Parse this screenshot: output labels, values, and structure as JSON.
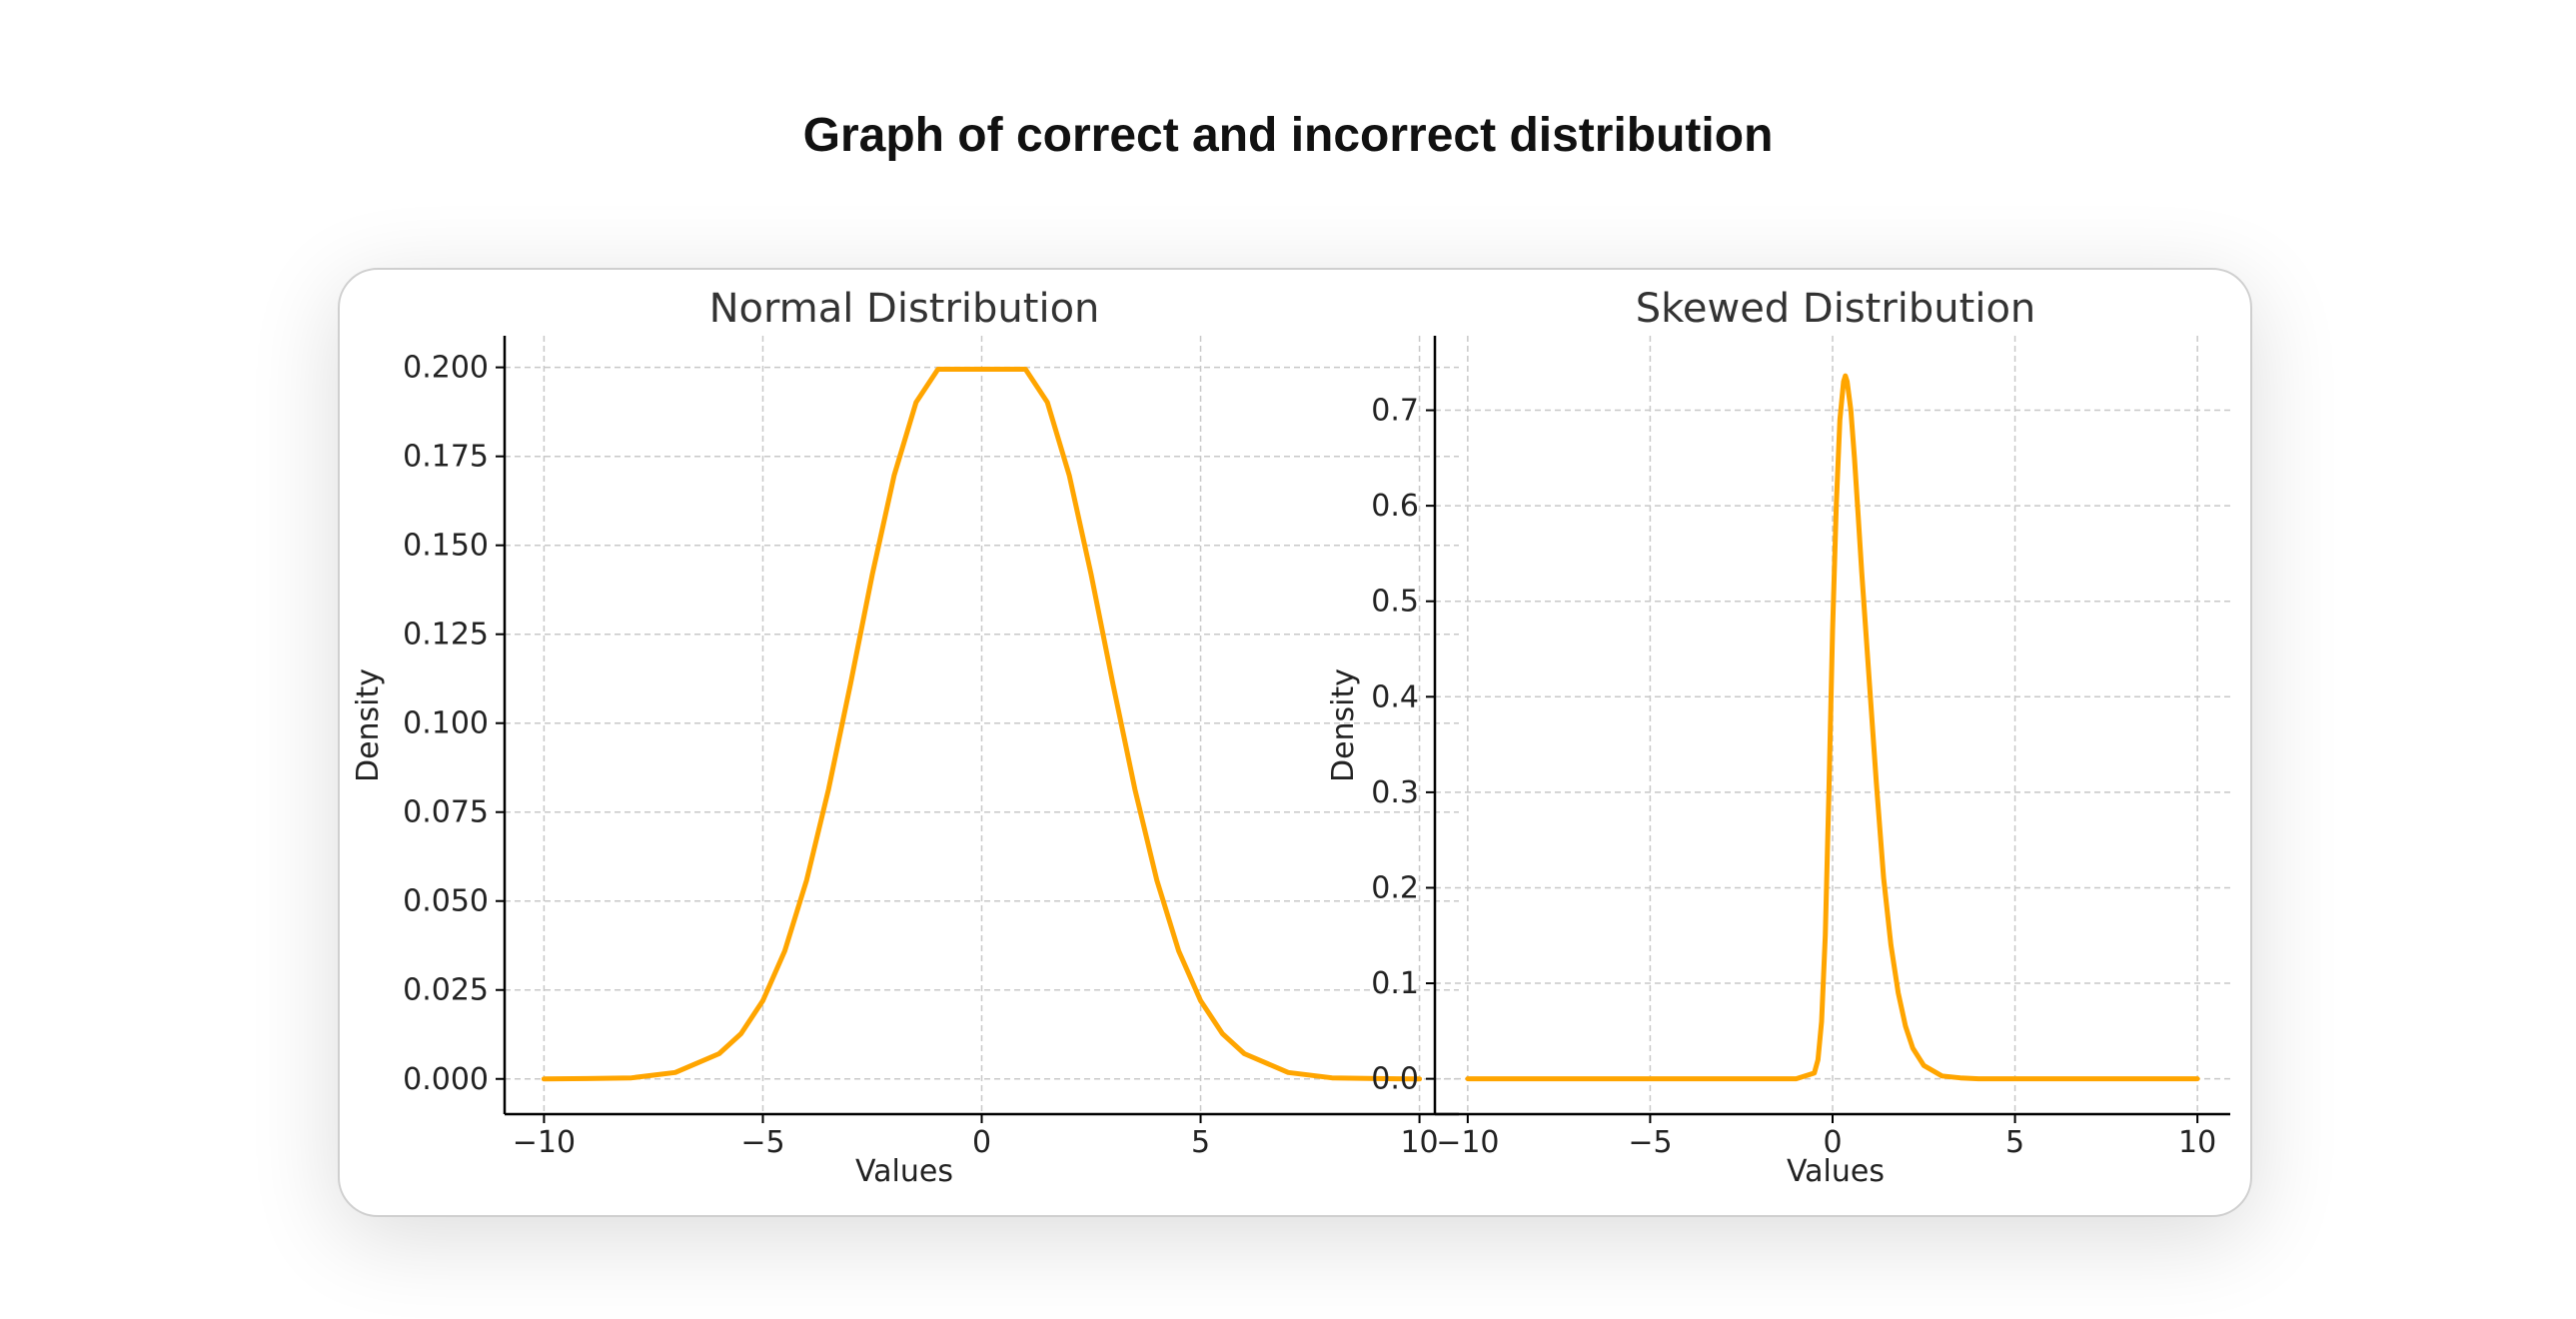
{
  "page": {
    "title": "Graph of correct and incorrect distribution"
  },
  "colors": {
    "curve": "#FFA500",
    "axis": "#000000",
    "grid": "#c8c8c8",
    "title_text": "#333333"
  },
  "chart_data": [
    {
      "type": "line",
      "title": "Normal Distribution",
      "xlabel": "Values",
      "ylabel": "Density",
      "xlim": [
        -10.9,
        10.9
      ],
      "ylim": [
        -0.0099,
        0.2089
      ],
      "xticks": [
        -10,
        -5,
        0,
        5,
        10
      ],
      "xtick_labels": [
        "−10",
        "−5",
        "0",
        "5",
        "10"
      ],
      "yticks": [
        0,
        0.025,
        0.05,
        0.075,
        0.1,
        0.125,
        0.15,
        0.175,
        0.2
      ],
      "ytick_labels": [
        "0.000",
        "0.025",
        "0.050",
        "0.075",
        "0.100",
        "0.125",
        "0.150",
        "0.175",
        "0.200"
      ],
      "grid": true,
      "series": [
        {
          "x": [
            -10,
            -9,
            -8,
            -7,
            -6,
            -5.5,
            -5,
            -4.5,
            -4,
            -3.5,
            -3,
            -2.5,
            -2,
            -1.5,
            -1,
            -0.5,
            0,
            0.5,
            1,
            1.5,
            2,
            2.5,
            3,
            3.5,
            4,
            4.5,
            5,
            5.5,
            6,
            7,
            8,
            9,
            10
          ],
          "y": [
            0.0,
            0.0001,
            0.0003,
            0.0018,
            0.0071,
            0.0127,
            0.022,
            0.036,
            0.0559,
            0.0814,
            0.1109,
            0.1418,
            0.1697,
            0.1902,
            0.1995,
            0.1995,
            0.1995,
            0.1995,
            0.1995,
            0.1902,
            0.1697,
            0.1418,
            0.1109,
            0.0814,
            0.0559,
            0.036,
            0.022,
            0.0127,
            0.0071,
            0.0018,
            0.0003,
            0.0001,
            0.0
          ]
        }
      ]
    },
    {
      "type": "line",
      "title": "Skewed Distribution",
      "xlabel": "Values",
      "ylabel": "Density",
      "xlim": [
        -10.9,
        10.9
      ],
      "ylim": [
        -0.037,
        0.778
      ],
      "xticks": [
        -10,
        -5,
        0,
        5,
        10
      ],
      "xtick_labels": [
        "−10",
        "−5",
        "0",
        "5",
        "10"
      ],
      "yticks": [
        0,
        0.1,
        0.2,
        0.3,
        0.4,
        0.5,
        0.6,
        0.7
      ],
      "ytick_labels": [
        "0.0",
        "0.1",
        "0.2",
        "0.3",
        "0.4",
        "0.5",
        "0.6",
        "0.7"
      ],
      "grid": true,
      "series": [
        {
          "x": [
            -10,
            -1,
            -0.5,
            -0.4,
            -0.3,
            -0.2,
            -0.1,
            0,
            0.1,
            0.2,
            0.3,
            0.35,
            0.4,
            0.5,
            0.6,
            0.7,
            0.8,
            1.0,
            1.2,
            1.4,
            1.6,
            1.8,
            2.0,
            2.2,
            2.5,
            3.0,
            3.5,
            4,
            10
          ],
          "y": [
            0.0,
            0.0,
            0.006,
            0.02,
            0.06,
            0.15,
            0.3,
            0.47,
            0.6,
            0.69,
            0.73,
            0.736,
            0.73,
            0.7,
            0.65,
            0.59,
            0.53,
            0.42,
            0.31,
            0.21,
            0.14,
            0.09,
            0.055,
            0.032,
            0.014,
            0.003,
            0.001,
            0.0,
            0.0
          ]
        }
      ]
    }
  ]
}
